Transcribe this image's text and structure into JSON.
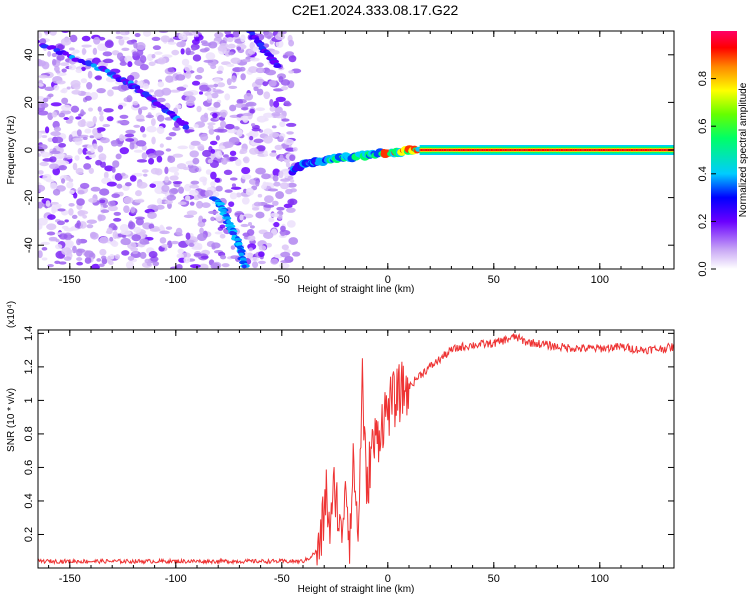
{
  "title": "C2E1.2024.333.08.17.G22",
  "chart_data": [
    {
      "type": "heatmap",
      "xlabel": "Height of straight line (km)",
      "ylabel": "Frequency (Hz)",
      "xlim": [
        -165,
        135
      ],
      "ylim": [
        -50,
        50
      ],
      "xticks": [
        -150,
        -100,
        -50,
        0,
        50,
        100
      ],
      "yticks": [
        -40,
        -20,
        0,
        20,
        40
      ],
      "colorbar": {
        "label": "Normalized spectral amplitude",
        "range": [
          0.0,
          1.0
        ],
        "ticks": [
          0.0,
          0.2,
          0.4,
          0.6,
          0.8
        ]
      },
      "features": {
        "noise_region_x": [
          -165,
          -45
        ],
        "direct_signal": {
          "x": [
            -45,
            135
          ],
          "freq_start": -9,
          "freq_end": 0,
          "converged_at": 15
        },
        "oblique_trace_1": [
          [
            -165,
            45
          ],
          [
            -135,
            34
          ],
          [
            -120,
            27
          ],
          [
            -105,
            17
          ],
          [
            -95,
            10
          ]
        ],
        "oblique_trace_2": [
          [
            -82,
            -20
          ],
          [
            -78,
            -25
          ],
          [
            -74,
            -33
          ],
          [
            -70,
            -40
          ],
          [
            -67,
            -50
          ]
        ],
        "upper_trace": [
          [
            -65,
            50
          ],
          [
            -58,
            42
          ],
          [
            -52,
            35
          ]
        ]
      }
    },
    {
      "type": "line",
      "xlabel": "Height of straight line (km)",
      "ylabel": "SNR (10 * v/v)",
      "y_multiplier": "(x10⁴)",
      "xlim": [
        -165,
        135
      ],
      "ylim": [
        0,
        1.42
      ],
      "xticks": [
        -150,
        -100,
        -50,
        0,
        50,
        100
      ],
      "yticks": [
        0.2,
        0.4,
        0.6,
        0.8,
        1.0,
        1.2,
        1.4
      ],
      "color": "#ee3333",
      "series": [
        {
          "x": [
            -165,
            -40,
            -37,
            -32,
            -29,
            -27,
            -25,
            -22,
            -20,
            -18,
            -16,
            -14,
            -12,
            -10,
            -8,
            -5,
            -2,
            0,
            3,
            6,
            10,
            15,
            20,
            25,
            30,
            35,
            40,
            50,
            55,
            60,
            65,
            70,
            75,
            80,
            90,
            100,
            110,
            120,
            130,
            135
          ],
          "y": [
            0.04,
            0.04,
            0.06,
            0.12,
            0.45,
            0.2,
            0.52,
            0.15,
            0.55,
            0.2,
            0.65,
            0.15,
            1.15,
            0.4,
            0.7,
            0.78,
            0.9,
            0.95,
            1.0,
            1.05,
            1.08,
            1.15,
            1.2,
            1.25,
            1.3,
            1.32,
            1.33,
            1.34,
            1.36,
            1.38,
            1.35,
            1.34,
            1.33,
            1.32,
            1.31,
            1.31,
            1.32,
            1.3,
            1.31,
            1.32
          ]
        }
      ]
    }
  ]
}
